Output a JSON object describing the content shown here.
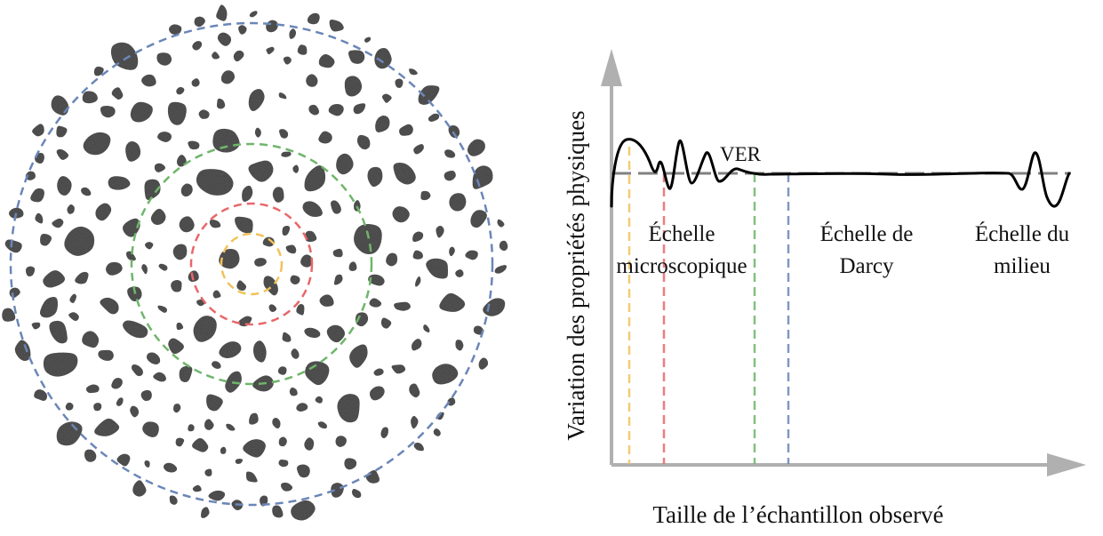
{
  "figure": {
    "colors": {
      "grain": "#555555",
      "axis": "#b0b0b0",
      "curve": "#000000",
      "reference_line": "#808080",
      "circle_yellow": "#f2c25a",
      "circle_red": "#e8676a",
      "circle_green": "#6fb56a",
      "circle_blue": "#6b86b8"
    },
    "graph": {
      "y_axis_label": "Variation des propriétés physiques",
      "x_axis_label": "Taille de l’échantillon observé",
      "ver_label": "VER",
      "regions": [
        {
          "line1": "Échelle",
          "line2": "microscopique"
        },
        {
          "line1": "Échelle de",
          "line2": "Darcy"
        },
        {
          "line1": "Échelle du",
          "line2": "milieu"
        }
      ]
    },
    "sample": {
      "circle_count": 4,
      "circle_colors": [
        "yellow",
        "red",
        "green",
        "blue"
      ]
    }
  }
}
